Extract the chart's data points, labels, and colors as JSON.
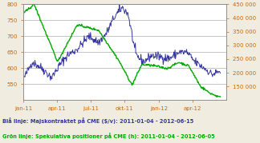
{
  "title": "",
  "left_ylim": [
    500,
    800
  ],
  "right_ylim": [
    100000,
    450000
  ],
  "left_yticks": [
    550,
    600,
    650,
    700,
    750,
    800
  ],
  "right_yticks": [
    150000,
    200000,
    250000,
    300000,
    350000,
    400000,
    450000
  ],
  "right_ytick_labels": [
    "150 000",
    "200 000",
    "250 000",
    "300 000",
    "350 000",
    "400 000",
    "450 000"
  ],
  "left_ytick_labels": [
    "550",
    "600",
    "650",
    "700",
    "750",
    "800"
  ],
  "xtick_labels": [
    "jan-11",
    "apr-11",
    "jul-11",
    "okt-11",
    "jan-12",
    "apr-12"
  ],
  "blue_color": "#3535a0",
  "green_color": "#00aa00",
  "background_color": "#f0ede0",
  "plot_bg_color": "#ffffff",
  "grid_color": "#999999",
  "tick_color": "#cc6600",
  "legend_blue": "Blå linje: Majskontraktet på CME ($/v): 2011-01-04 - 2012-06-15",
  "legend_green": "Grön linje: Spekulativa positioner på CME (h): 2011-01-04 - 2012-06-05",
  "n_points": 370
}
